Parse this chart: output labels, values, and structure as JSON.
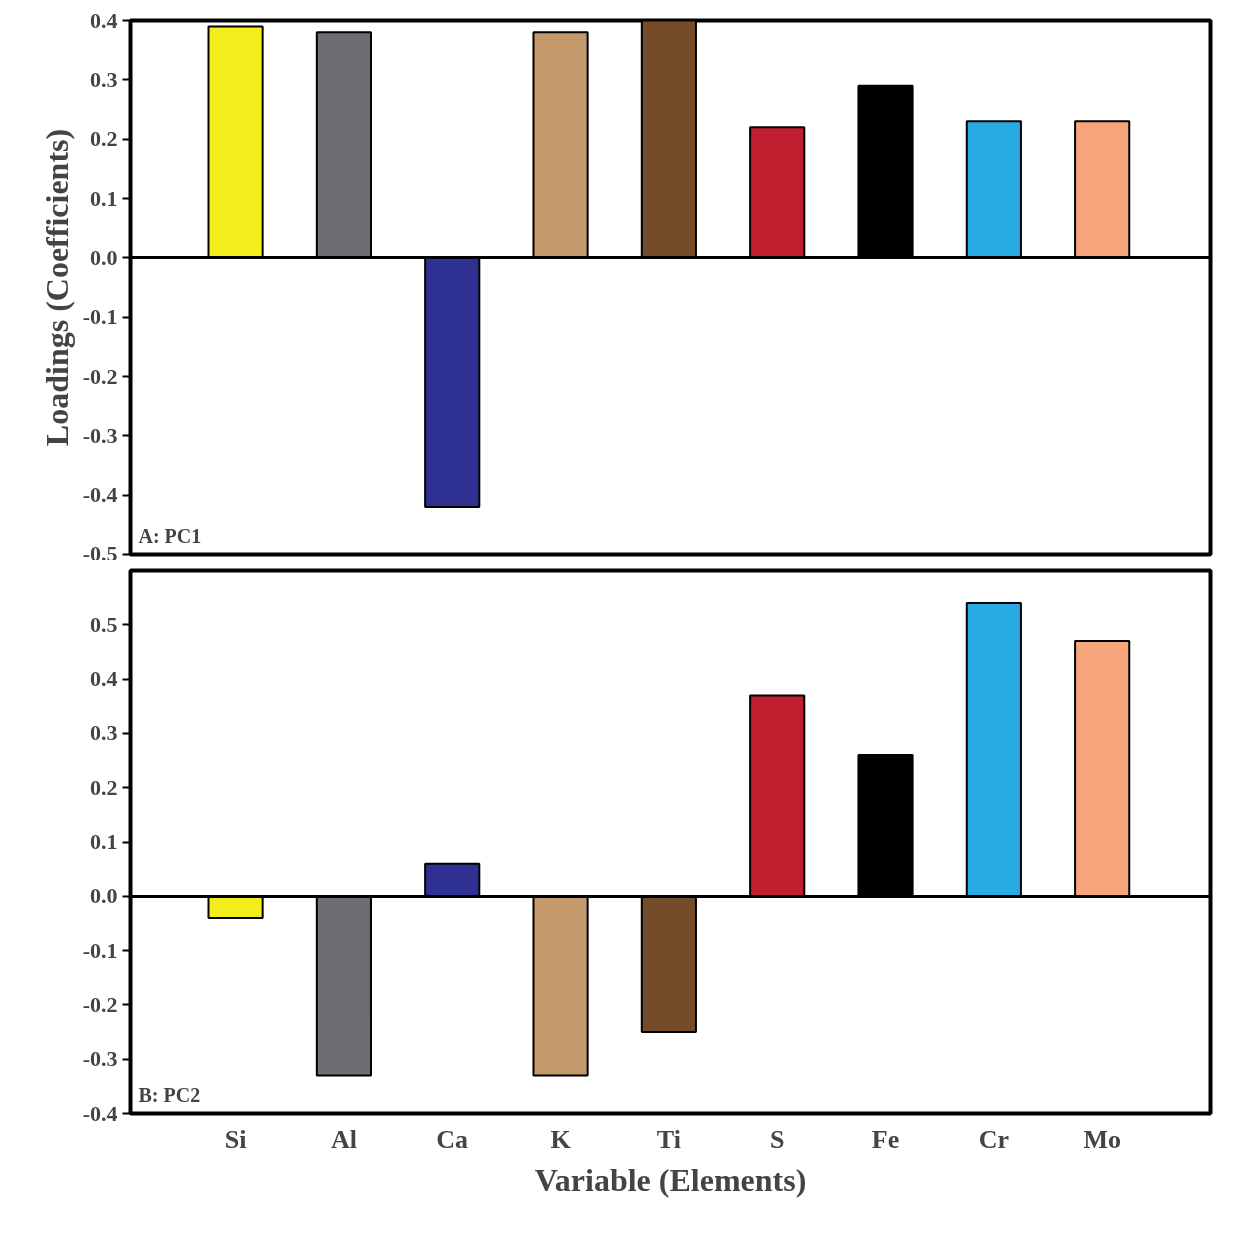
{
  "chart_data": [
    {
      "type": "bar",
      "ylabel": "Loadings (Coefficients)",
      "annotations": [
        "A: PC1"
      ],
      "categories": [
        null,
        null,
        null,
        null,
        null,
        null,
        null,
        null,
        null
      ],
      "values": [
        0.39,
        0.38,
        -0.42,
        0.38,
        0.4,
        0.22,
        0.29,
        0.23,
        0.23
      ],
      "colors": [
        "#f5ec1e",
        "#6d6e71",
        "#2e3192",
        "#c49a6c",
        "#754c29",
        "#be1e2d",
        "#000000",
        "#27aae1",
        "#f7a57b"
      ],
      "ylim": [
        -0.5,
        0.4
      ],
      "yticks": [
        {
          "value": -0.5,
          "label": "-0.5"
        },
        {
          "value": -0.4,
          "label": "-0.4"
        },
        {
          "value": -0.3,
          "label": "-0.3"
        },
        {
          "value": -0.2,
          "label": "-0.2"
        },
        {
          "value": -0.1,
          "label": "-0.1"
        },
        {
          "value": 0,
          "label": "0.0"
        },
        {
          "value": 0.1,
          "label": "0.1"
        },
        {
          "value": 0.2,
          "label": "0.2"
        },
        {
          "value": 0.3,
          "label": "0.3"
        },
        {
          "value": 0.4,
          "label": "0.4"
        }
      ],
      "tick_labels": "y"
    },
    {
      "type": "bar",
      "xlabel": "Variable (Elements)",
      "annotations": [
        "B: PC2"
      ],
      "categories": [
        "Si",
        "Al",
        "Ca",
        "K",
        "Ti",
        "S",
        "Fe",
        "Cr",
        "Mo"
      ],
      "values": [
        -0.04,
        -0.33,
        0.06,
        -0.33,
        -0.25,
        0.37,
        0.26,
        0.54,
        0.47
      ],
      "colors": [
        "#f5ec1e",
        "#6d6e71",
        "#2e3192",
        "#c49a6c",
        "#754c29",
        "#be1e2d",
        "#000000",
        "#27aae1",
        "#f7a57b"
      ],
      "ylim": [
        -0.4,
        0.6
      ],
      "yticks": [
        {
          "value": -0.4,
          "label": "-0.4"
        },
        {
          "value": -0.3,
          "label": "-0.3"
        },
        {
          "value": -0.2,
          "label": "-0.2"
        },
        {
          "value": -0.1,
          "label": "-0.1"
        },
        {
          "value": 0,
          "label": "0.0"
        },
        {
          "value": 0.1,
          "label": "0.1"
        },
        {
          "value": 0.2,
          "label": "0.2"
        },
        {
          "value": 0.3,
          "label": "0.3"
        },
        {
          "value": 0.4,
          "label": "0.4"
        },
        {
          "value": 0.5,
          "label": "0.5"
        }
      ]
    }
  ]
}
